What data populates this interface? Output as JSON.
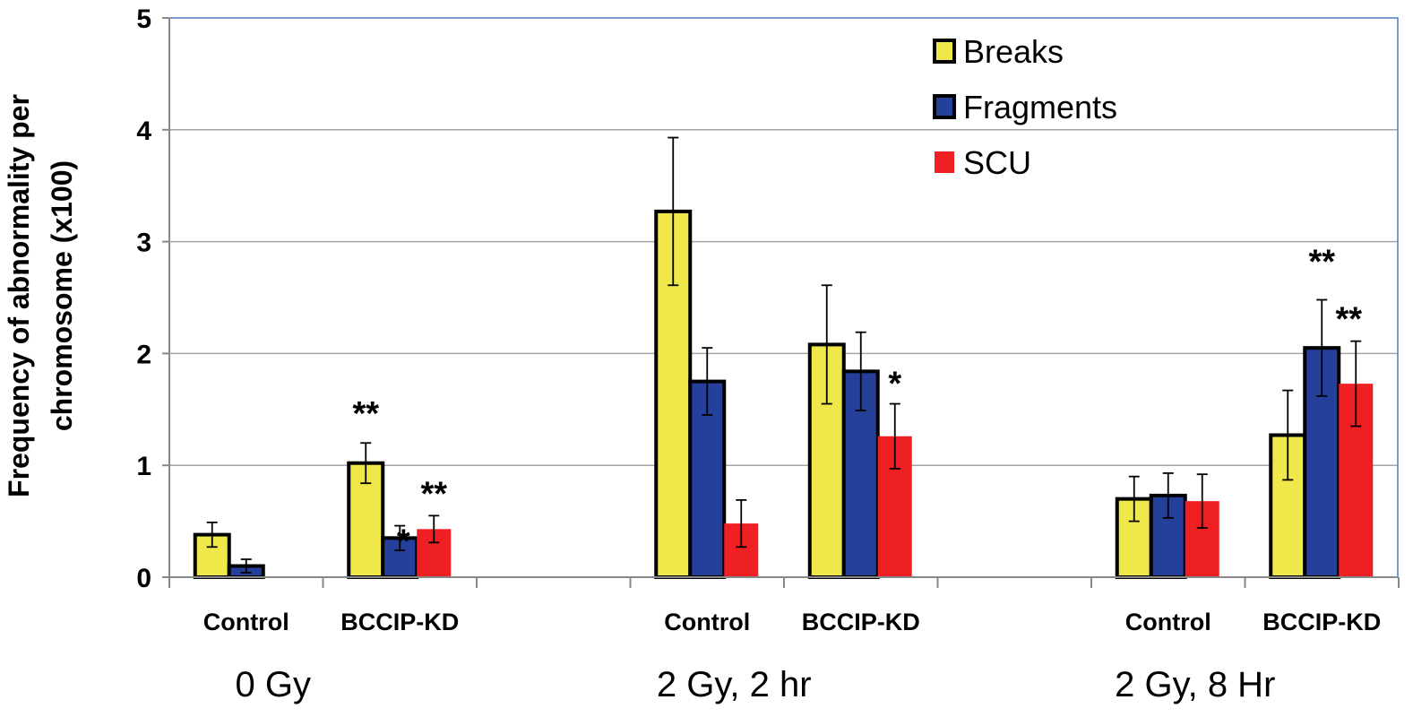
{
  "chart_data": {
    "type": "bar",
    "ylabel": "Frequency of abnormality per chromosome (x100)",
    "ylabel_lines": [
      "Frequency of abnormality per",
      "chromosome (x100)"
    ],
    "ylim": [
      0,
      5
    ],
    "yticks": [
      "0",
      "1",
      "2",
      "3",
      "4",
      "5"
    ],
    "grid": true,
    "legend_position": "top-right",
    "colors": {
      "Breaks": "#f0e84a",
      "Fragments": "#24409a",
      "SCU": "#ee2024"
    },
    "groups": [
      {
        "label": "0 Gy",
        "categories": [
          "Control",
          "BCCIP-KD"
        ]
      },
      {
        "label": "2 Gy, 2 hr",
        "categories": [
          "Control",
          "BCCIP-KD"
        ]
      },
      {
        "label": "2 Gy, 8 Hr",
        "categories": [
          "Control",
          "BCCIP-KD"
        ]
      }
    ],
    "series": [
      {
        "name": "Breaks",
        "values": [
          0.38,
          1.02,
          3.27,
          2.08,
          0.7,
          1.27
        ],
        "errors": [
          0.11,
          0.18,
          0.66,
          0.53,
          0.2,
          0.4
        ],
        "significance": [
          "",
          "**",
          "",
          "",
          "",
          ""
        ]
      },
      {
        "name": "Fragments",
        "values": [
          0.1,
          0.35,
          1.75,
          1.84,
          0.73,
          2.05
        ],
        "errors": [
          0.06,
          0.11,
          0.3,
          0.35,
          0.2,
          0.43
        ],
        "significance": [
          "",
          "*",
          "",
          "",
          "",
          "**"
        ]
      },
      {
        "name": "SCU",
        "values": [
          0,
          0.43,
          0.48,
          1.26,
          0.68,
          1.73
        ],
        "errors": [
          0,
          0.12,
          0.21,
          0.29,
          0.24,
          0.38
        ],
        "significance": [
          "",
          "**",
          "",
          "*",
          "",
          "**"
        ]
      }
    ]
  }
}
